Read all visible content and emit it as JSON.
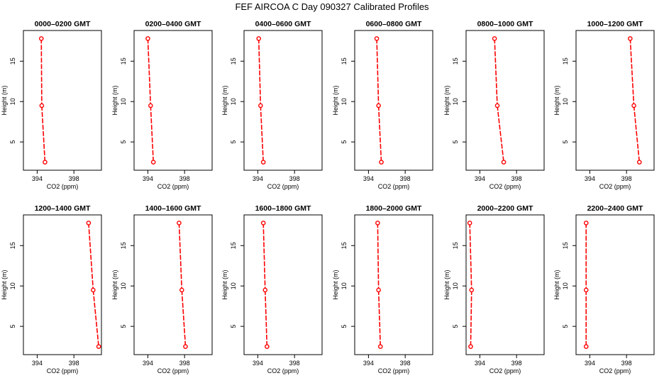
{
  "figure": {
    "title": "FEF AIRCOA C  Day 090327  Calibrated Profiles"
  },
  "colors": {
    "profile": "#ff0000",
    "axis": "#000000"
  },
  "chart_data": [
    {
      "type": "line",
      "title": "0000–0200 GMT",
      "xlabel": "CO2 (ppm)",
      "ylabel": "Height (m)",
      "xlim": [
        392.5,
        401
      ],
      "ylim": [
        1.5,
        18.8
      ],
      "xticks": [
        "394",
        "398"
      ],
      "yticks": [
        "5",
        "10",
        "15"
      ],
      "x": [
        394.45,
        394.5,
        394.85
      ],
      "y": [
        17.8,
        9.5,
        2.5
      ],
      "grid": false,
      "legend": "none"
    },
    {
      "type": "line",
      "title": "0200–0400 GMT",
      "xlabel": "CO2 (ppm)",
      "ylabel": "Height (m)",
      "xlim": [
        392.5,
        401
      ],
      "ylim": [
        1.5,
        18.8
      ],
      "xticks": [
        "394",
        "398"
      ],
      "yticks": [
        "5",
        "10",
        "15"
      ],
      "x": [
        394.0,
        394.3,
        394.6
      ],
      "y": [
        17.8,
        9.5,
        2.5
      ],
      "grid": false,
      "legend": "none"
    },
    {
      "type": "line",
      "title": "0400–0600 GMT",
      "xlabel": "CO2 (ppm)",
      "ylabel": "Height (m)",
      "xlim": [
        392.5,
        401
      ],
      "ylim": [
        1.5,
        18.8
      ],
      "xticks": [
        "394",
        "398"
      ],
      "yticks": [
        "5",
        "10",
        "15"
      ],
      "x": [
        394.1,
        394.3,
        394.6
      ],
      "y": [
        17.8,
        9.5,
        2.5
      ],
      "grid": false,
      "legend": "none"
    },
    {
      "type": "line",
      "title": "0600–0800 GMT",
      "xlabel": "CO2 (ppm)",
      "ylabel": "Height (m)",
      "xlim": [
        392.5,
        401
      ],
      "ylim": [
        1.5,
        18.8
      ],
      "xticks": [
        "394",
        "398"
      ],
      "yticks": [
        "5",
        "10",
        "15"
      ],
      "x": [
        394.9,
        395.1,
        395.4
      ],
      "y": [
        17.8,
        9.5,
        2.5
      ],
      "grid": false,
      "legend": "none"
    },
    {
      "type": "line",
      "title": "0800–1000 GMT",
      "xlabel": "CO2 (ppm)",
      "ylabel": "Height (m)",
      "xlim": [
        392.5,
        401
      ],
      "ylim": [
        1.5,
        18.8
      ],
      "xticks": [
        "394",
        "398"
      ],
      "yticks": [
        "5",
        "10",
        "15"
      ],
      "x": [
        395.6,
        395.9,
        396.6
      ],
      "y": [
        17.8,
        9.5,
        2.5
      ],
      "grid": false,
      "legend": "none"
    },
    {
      "type": "line",
      "title": "1000–1200 GMT",
      "xlabel": "CO2 (ppm)",
      "ylabel": "Height (m)",
      "xlim": [
        392.5,
        401
      ],
      "ylim": [
        1.5,
        18.8
      ],
      "xticks": [
        "394",
        "398"
      ],
      "yticks": [
        "5",
        "10",
        "15"
      ],
      "x": [
        398.4,
        398.8,
        399.4
      ],
      "y": [
        17.8,
        9.5,
        2.5
      ],
      "grid": false,
      "legend": "none"
    },
    {
      "type": "line",
      "title": "1200–1400 GMT",
      "xlabel": "CO2 (ppm)",
      "ylabel": "Height (m)",
      "xlim": [
        392.5,
        401
      ],
      "ylim": [
        1.5,
        18.8
      ],
      "xticks": [
        "394",
        "398"
      ],
      "yticks": [
        "5",
        "10",
        "15"
      ],
      "x": [
        399.6,
        400.1,
        400.7
      ],
      "y": [
        17.8,
        9.5,
        2.5
      ],
      "grid": false,
      "legend": "none"
    },
    {
      "type": "line",
      "title": "1400–1600 GMT",
      "xlabel": "CO2 (ppm)",
      "ylabel": "Height (m)",
      "xlim": [
        392.5,
        401
      ],
      "ylim": [
        1.5,
        18.8
      ],
      "xticks": [
        "394",
        "398"
      ],
      "yticks": [
        "5",
        "10",
        "15"
      ],
      "x": [
        397.4,
        397.7,
        398.1
      ],
      "y": [
        17.8,
        9.5,
        2.5
      ],
      "grid": false,
      "legend": "none"
    },
    {
      "type": "line",
      "title": "1600–1800 GMT",
      "xlabel": "CO2 (ppm)",
      "ylabel": "Height (m)",
      "xlim": [
        392.5,
        401
      ],
      "ylim": [
        1.5,
        18.8
      ],
      "xticks": [
        "394",
        "398"
      ],
      "yticks": [
        "5",
        "10",
        "15"
      ],
      "x": [
        394.6,
        394.8,
        395.0
      ],
      "y": [
        17.8,
        9.5,
        2.5
      ],
      "grid": false,
      "legend": "none"
    },
    {
      "type": "line",
      "title": "1800–2000 GMT",
      "xlabel": "CO2 (ppm)",
      "ylabel": "Height (m)",
      "xlim": [
        392.5,
        401
      ],
      "ylim": [
        1.5,
        18.8
      ],
      "xticks": [
        "394",
        "398"
      ],
      "yticks": [
        "5",
        "10",
        "15"
      ],
      "x": [
        395.0,
        395.1,
        395.3
      ],
      "y": [
        17.8,
        9.5,
        2.5
      ],
      "grid": false,
      "legend": "none"
    },
    {
      "type": "line",
      "title": "2000–2200 GMT",
      "xlabel": "CO2 (ppm)",
      "ylabel": "Height (m)",
      "xlim": [
        392.5,
        401
      ],
      "ylim": [
        1.5,
        18.8
      ],
      "xticks": [
        "394",
        "398"
      ],
      "yticks": [
        "5",
        "10",
        "15"
      ],
      "x": [
        392.9,
        393.1,
        393.0
      ],
      "y": [
        17.8,
        9.5,
        2.5
      ],
      "grid": false,
      "legend": "none"
    },
    {
      "type": "line",
      "title": "2200–2400 GMT",
      "xlabel": "CO2 (ppm)",
      "ylabel": "Height (m)",
      "xlim": [
        392.5,
        401
      ],
      "ylim": [
        1.5,
        18.8
      ],
      "xticks": [
        "394",
        "398"
      ],
      "yticks": [
        "5",
        "10",
        "15"
      ],
      "x": [
        393.6,
        393.6,
        393.6
      ],
      "y": [
        17.8,
        9.5,
        2.5
      ],
      "grid": false,
      "legend": "none"
    }
  ]
}
